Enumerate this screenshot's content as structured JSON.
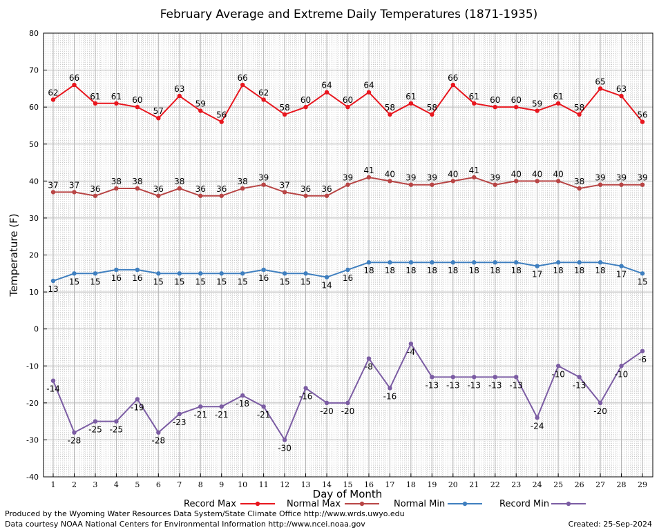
{
  "chart_data": {
    "type": "line",
    "title": "February Average and Extreme Daily Temperatures (1871-1935)",
    "xlabel": "Day of Month",
    "ylabel": "Temperature (F)",
    "x": [
      1,
      2,
      3,
      4,
      5,
      6,
      7,
      8,
      9,
      10,
      11,
      12,
      13,
      14,
      15,
      16,
      17,
      18,
      19,
      20,
      21,
      22,
      23,
      24,
      25,
      26,
      27,
      28,
      29
    ],
    "xlim": [
      1,
      29
    ],
    "ylim": [
      -40,
      80
    ],
    "yticks": [
      -40,
      -30,
      -20,
      -10,
      0,
      10,
      20,
      30,
      40,
      50,
      60,
      70,
      80
    ],
    "grid": true,
    "legend_position": "bottom",
    "series": [
      {
        "name": "Record Max",
        "color": "#e8161e",
        "label_side": "above",
        "values": [
          62,
          66,
          61,
          61,
          60,
          57,
          63,
          59,
          56,
          66,
          62,
          58,
          60,
          64,
          60,
          64,
          58,
          61,
          58,
          66,
          61,
          60,
          60,
          59,
          61,
          58,
          65,
          63,
          56
        ]
      },
      {
        "name": "Normal Max",
        "color": "#b84545",
        "label_side": "above",
        "values": [
          37,
          37,
          36,
          38,
          38,
          36,
          38,
          36,
          36,
          38,
          39,
          37,
          36,
          36,
          39,
          41,
          40,
          39,
          39,
          40,
          41,
          39,
          40,
          40,
          40,
          38,
          39,
          39,
          39
        ]
      },
      {
        "name": "Normal Min",
        "color": "#3f7fbf",
        "label_side": "below",
        "values": [
          13,
          15,
          15,
          16,
          16,
          15,
          15,
          15,
          15,
          15,
          16,
          15,
          15,
          14,
          16,
          18,
          18,
          18,
          18,
          18,
          18,
          18,
          18,
          17,
          18,
          18,
          18,
          17,
          15
        ]
      },
      {
        "name": "Record Min",
        "color": "#7b5ca3",
        "label_side": "below",
        "values": [
          -14,
          -28,
          -25,
          -25,
          -19,
          -28,
          -23,
          -21,
          -21,
          -18,
          -21,
          -30,
          -16,
          -20,
          -20,
          -8,
          -16,
          -4,
          -13,
          -13,
          -13,
          -13,
          -13,
          -24,
          -10,
          -13,
          -20,
          -10,
          -6
        ]
      }
    ]
  },
  "footer": {
    "produced_by": "Produced by the Wyoming Water Resources Data System/State Climate Office http://www.wrds.uwyo.edu",
    "courtesy": "Data courtesy NOAA National Centers for Environmental Information http://www.ncei.noaa.gov",
    "created": "Created:  25-Sep-2024"
  }
}
